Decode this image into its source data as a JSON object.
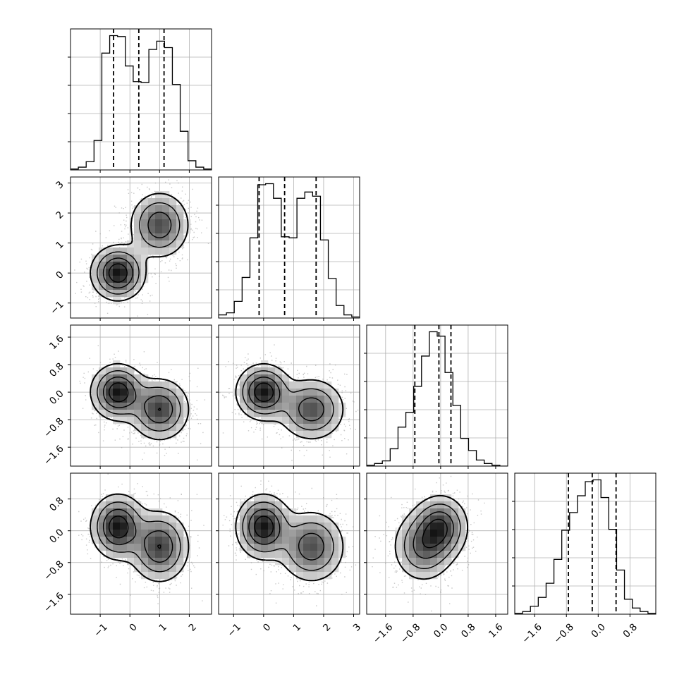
{
  "chart_data": {
    "type": "corner",
    "grid": true,
    "variables": [
      {
        "ticks": [
          -1,
          0,
          1,
          2
        ],
        "tick_labels": [
          "−1",
          "0",
          "1",
          "2"
        ],
        "range": [
          -2.0,
          2.75
        ],
        "quantiles": [
          -0.55,
          0.3,
          1.15
        ],
        "histogram": {
          "edges_range": [
            -2.0,
            2.75
          ],
          "counts": [
            1,
            3,
            9,
            32,
            127,
            146,
            145,
            113,
            96,
            95,
            131,
            140,
            133,
            93,
            42,
            10,
            3,
            1
          ]
        }
      },
      {
        "ticks": [
          -1,
          0,
          1,
          2,
          3
        ],
        "tick_labels": [
          "−1",
          "0",
          "1",
          "2",
          "3"
        ],
        "range": [
          -1.5,
          3.2
        ],
        "quantiles": [
          -0.15,
          0.7,
          1.75
        ],
        "histogram": {
          "edges_range": [
            -1.5,
            3.2
          ],
          "counts": [
            3,
            5,
            16,
            39,
            77,
            128,
            129,
            115,
            78,
            77,
            115,
            121,
            117,
            75,
            38,
            12,
            3,
            1
          ]
        }
      },
      {
        "ticks": [
          -1.6,
          -0.8,
          0.0,
          0.8,
          1.6
        ],
        "tick_labels": [
          "−1.6",
          "−0.8",
          "0.0",
          "0.8",
          "1.6"
        ],
        "range": [
          -2.15,
          1.95
        ],
        "quantiles": [
          -0.75,
          -0.05,
          0.3
        ],
        "histogram": {
          "edges_range": [
            -2.15,
            1.95
          ],
          "counts": [
            1,
            3,
            6,
            20,
            45,
            62,
            92,
            127,
            155,
            150,
            108,
            70,
            32,
            18,
            7,
            3,
            1,
            0
          ]
        }
      },
      {
        "ticks": [
          -1.6,
          -0.8,
          0.0,
          0.8
        ],
        "tick_labels": [
          "−1.6",
          "−0.8",
          "0.0",
          "0.8"
        ],
        "range": [
          -2.1,
          1.45
        ],
        "quantiles": [
          -0.75,
          -0.15,
          0.45
        ],
        "histogram": {
          "edges_range": [
            -2.1,
            1.45
          ],
          "counts": [
            1,
            3,
            9,
            19,
            35,
            62,
            95,
            115,
            134,
            150,
            152,
            132,
            96,
            50,
            17,
            7,
            3,
            1
          ]
        }
      }
    ],
    "components": [
      {
        "weight": 0.5,
        "mean": [
          -0.4,
          0.0,
          0.0,
          0.1
        ],
        "sd": [
          0.45,
          0.45,
          0.4,
          0.4
        ]
      },
      {
        "weight": 0.5,
        "mean": [
          1.0,
          1.6,
          -0.5,
          -0.4
        ],
        "sd": [
          0.5,
          0.55,
          0.45,
          0.45
        ]
      }
    ]
  }
}
